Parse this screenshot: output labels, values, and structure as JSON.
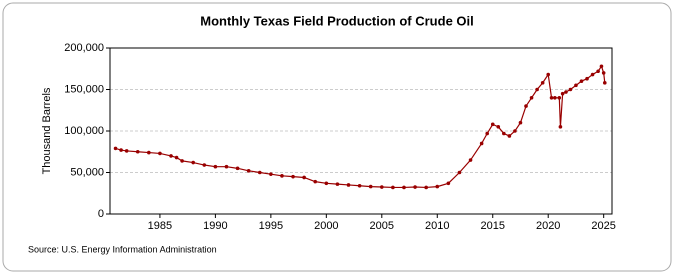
{
  "chart_data": {
    "type": "line",
    "title": "Monthly Texas Field Production of Crude Oil",
    "y_label": "Thousand Barrels",
    "source": "Source: U.S. Energy Information Administration",
    "xlim": [
      1980.5,
      2025.75
    ],
    "xticks": [
      1985,
      1990,
      1995,
      2000,
      2005,
      2010,
      2015,
      2020,
      2025
    ],
    "ylim": [
      0,
      200000
    ],
    "yticks": [
      0,
      {
        "value": 50000,
        "label": "50,000"
      },
      {
        "value": 100000,
        "label": "100,000"
      },
      {
        "value": 150000,
        "label": "150,000"
      },
      {
        "value": 200000,
        "label": "200,000"
      }
    ],
    "grid": true,
    "series": [
      {
        "name": "Texas Field Production of Crude Oil",
        "color": "#990000",
        "x": [
          1981,
          1981.5,
          1982,
          1983,
          1984,
          1985,
          1986,
          1986.5,
          1987,
          1988,
          1989,
          1990,
          1991,
          1992,
          1993,
          1994,
          1995,
          1996,
          1997,
          1998,
          1999,
          2000,
          2001,
          2002,
          2003,
          2004,
          2005,
          2006,
          2007,
          2008,
          2009,
          2010,
          2011,
          2012,
          2013,
          2014,
          2014.5,
          2015,
          2015.5,
          2016,
          2016.5,
          2017,
          2017.5,
          2018,
          2018.5,
          2019,
          2019.5,
          2020,
          2020.3,
          2020.6,
          2021,
          2021.1,
          2021.3,
          2021.6,
          2022,
          2022.5,
          2023,
          2023.5,
          2024,
          2024.5,
          2024.8,
          2025,
          2025.1
        ],
        "values": [
          79000,
          77000,
          76000,
          75000,
          74000,
          73000,
          70000,
          68000,
          64000,
          62000,
          59000,
          57000,
          57000,
          55000,
          52000,
          50000,
          48000,
          46000,
          45000,
          44000,
          39000,
          37000,
          36000,
          35000,
          34000,
          33000,
          32500,
          32000,
          32000,
          32500,
          32000,
          33000,
          37000,
          50000,
          65000,
          85000,
          97000,
          108000,
          105000,
          97000,
          94000,
          100000,
          110000,
          130000,
          140000,
          150000,
          158000,
          168000,
          140000,
          140000,
          140000,
          105000,
          145000,
          147000,
          150000,
          155000,
          160000,
          163000,
          168000,
          172000,
          178000,
          170000,
          158000
        ]
      }
    ]
  }
}
